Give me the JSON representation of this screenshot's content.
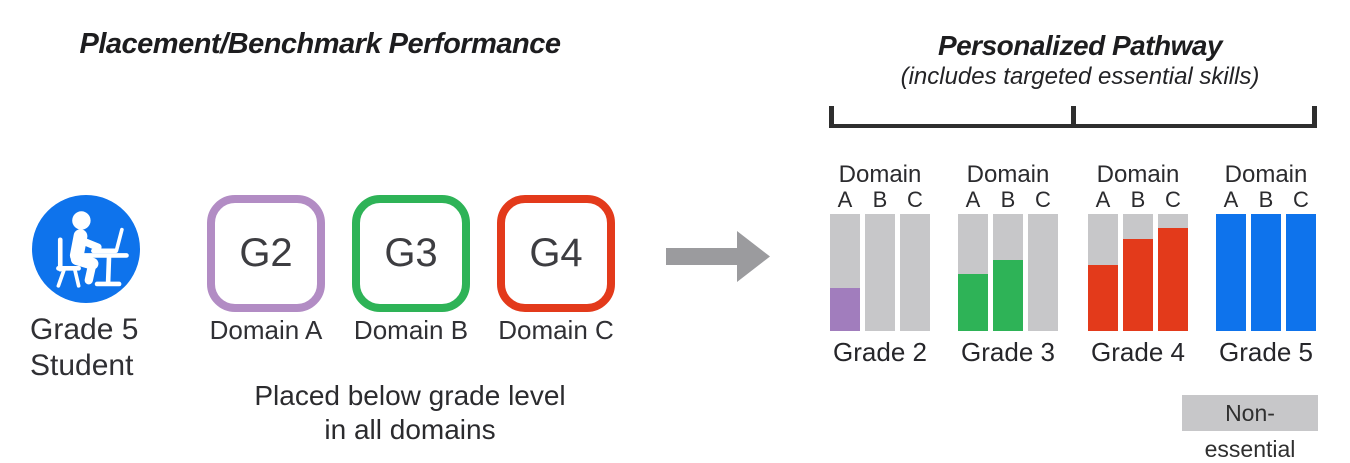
{
  "colors": {
    "blue": "#0E73EC",
    "purple": "#A17DBD",
    "purple_border": "#B28CC4",
    "green": "#2EB357",
    "red": "#E33A1B",
    "gray_bar": "#C7C7C9",
    "arrow_gray": "#9B9B9E",
    "bracket": "#2E2E2E"
  },
  "left_panel": {
    "title": "Placement/Benchmark Performance",
    "student": {
      "line1": "Grade 5",
      "line2": "Student",
      "icon": "student-at-laptop-icon"
    },
    "boxes": [
      {
        "grade": "G2",
        "domain": "Domain A",
        "border_color": "#B28CC4"
      },
      {
        "grade": "G3",
        "domain": "Domain B",
        "border_color": "#2EB357"
      },
      {
        "grade": "G4",
        "domain": "Domain C",
        "border_color": "#E33A1B"
      }
    ],
    "caption": [
      "Placed below grade level",
      "in all domains"
    ]
  },
  "right_panel": {
    "title": "Personalized Pathway",
    "subtitle": "(includes targeted essential skills)",
    "legend_label": "Non-essential"
  },
  "chart_data": {
    "type": "bar",
    "title": "Personalized Pathway",
    "subtitle": "(includes targeted essential skills)",
    "bar_background": "#C7C7C9",
    "legend": [
      {
        "label": "Non-essential",
        "color": "#C7C7C9"
      }
    ],
    "groups": [
      {
        "grade": "Grade 2",
        "header": "Domain",
        "columns": [
          "A",
          "B",
          "C"
        ],
        "fill_color": "#A17DBD",
        "fill_fractions": [
          0.37,
          0,
          0
        ]
      },
      {
        "grade": "Grade 3",
        "header": "Domain",
        "columns": [
          "A",
          "B",
          "C"
        ],
        "fill_color": "#2EB357",
        "fill_fractions": [
          0.49,
          0.61,
          0
        ]
      },
      {
        "grade": "Grade 4",
        "header": "Domain",
        "columns": [
          "A",
          "B",
          "C"
        ],
        "fill_color": "#E33A1B",
        "fill_fractions": [
          0.56,
          0.79,
          0.88
        ]
      },
      {
        "grade": "Grade 5",
        "header": "Domain",
        "columns": [
          "A",
          "B",
          "C"
        ],
        "fill_color": "#0E73EC",
        "fill_fractions": [
          1,
          1,
          1
        ]
      }
    ]
  }
}
